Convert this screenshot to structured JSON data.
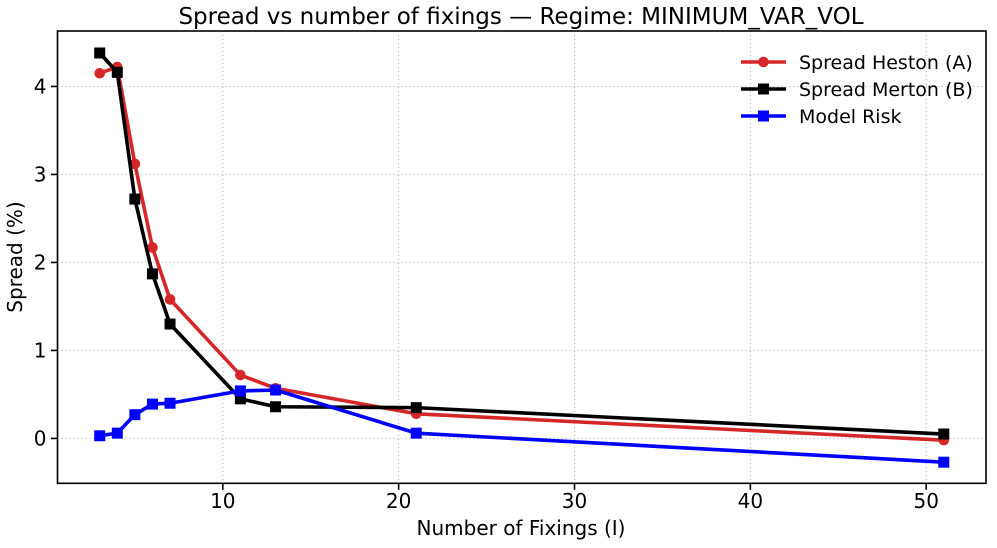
{
  "chart_data": {
    "type": "line",
    "title": "Spread vs number of fixings — Regime: MINIMUM_VAR_VOL",
    "xlabel": "Number of Fixings (I)",
    "ylabel": "Spread (%)",
    "x": [
      3,
      4,
      5,
      6,
      7,
      11,
      13,
      21,
      51
    ],
    "series": [
      {
        "name": "Spread Heston (A)",
        "color": "#d62728",
        "marker": "circle",
        "values": [
          4.15,
          4.22,
          3.12,
          2.17,
          1.58,
          0.72,
          0.57,
          0.28,
          -0.02
        ]
      },
      {
        "name": "Spread Merton (B)",
        "color": "#000000",
        "marker": "square",
        "values": [
          4.38,
          4.16,
          2.72,
          1.87,
          1.3,
          0.45,
          0.36,
          0.35,
          0.05
        ]
      },
      {
        "name": "Model Risk",
        "color": "#0000ff",
        "marker": "square",
        "values": [
          0.03,
          0.06,
          0.27,
          0.39,
          0.4,
          0.54,
          0.55,
          0.06,
          -0.27
        ]
      }
    ],
    "xticks": [
      10,
      20,
      30,
      40,
      50
    ],
    "yticks": [
      0,
      1,
      2,
      3,
      4
    ],
    "xlim": [
      0.6,
      53.4
    ],
    "ylim": [
      -0.51,
      4.63
    ],
    "grid": {
      "on": true,
      "color": "#b0b0b0",
      "style": "dotted"
    },
    "legend_position": "upper right",
    "spine_color": "#000000"
  }
}
